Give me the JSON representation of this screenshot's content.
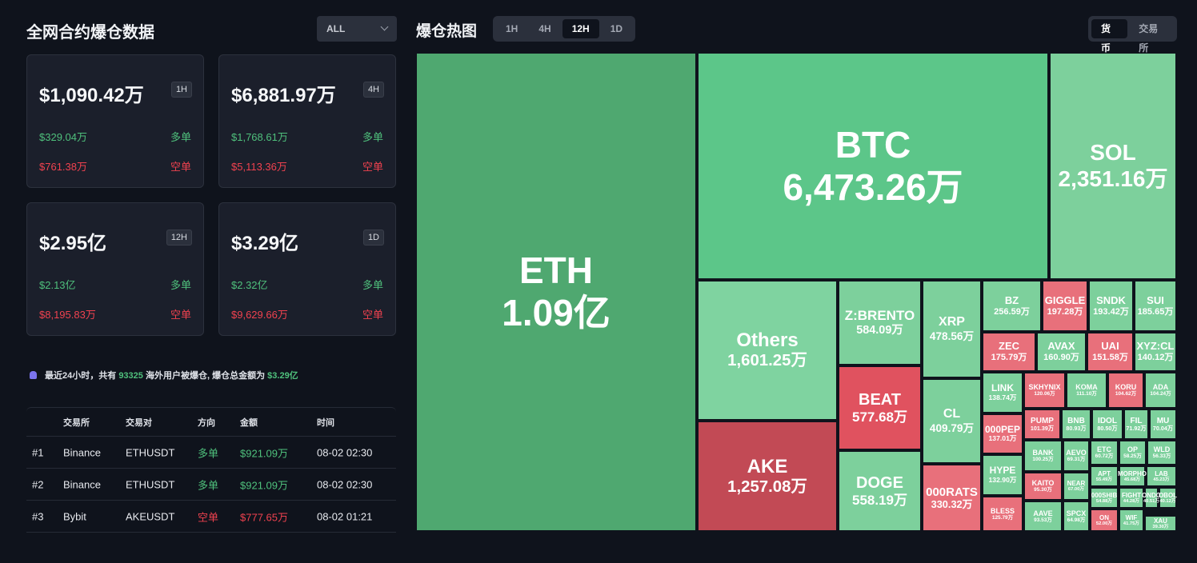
{
  "left": {
    "title": "全网合约爆仓数据",
    "filter": "ALL",
    "cards": [
      {
        "total": "$1,090.42万",
        "period": "1H",
        "long": "$329.04万",
        "long_label": "多单",
        "short": "$761.38万",
        "short_label": "空单"
      },
      {
        "total": "$6,881.97万",
        "period": "4H",
        "long": "$1,768.61万",
        "long_label": "多单",
        "short": "$5,113.36万",
        "short_label": "空单"
      },
      {
        "total": "$2.95亿",
        "period": "12H",
        "long": "$2.13亿",
        "long_label": "多单",
        "short": "$8,195.83万",
        "short_label": "空单"
      },
      {
        "total": "$3.29亿",
        "period": "1D",
        "long": "$2.32亿",
        "long_label": "多单",
        "short": "$9,629.66万",
        "short_label": "空单"
      }
    ],
    "notice": {
      "prefix": "最近24小时，共有",
      "count": "93325",
      "middle": "海外用户被爆仓, 爆仓总金额为",
      "amount": "$3.29亿"
    },
    "table": {
      "headers": [
        "交易所",
        "交易对",
        "方向",
        "金额",
        "时间"
      ],
      "rows": [
        [
          "#1",
          "Binance",
          "ETHUSDT",
          "多单",
          "$921.09万",
          "08-02 02:30"
        ],
        [
          "#2",
          "Binance",
          "ETHUSDT",
          "多单",
          "$921.09万",
          "08-02 02:30"
        ],
        [
          "#3",
          "Bybit",
          "AKEUSDT",
          "空单",
          "$777.65万",
          "08-02 01:21"
        ]
      ]
    }
  },
  "right": {
    "title": "爆仓热图",
    "tabs": [
      "1H",
      "4H",
      "12H",
      "1D"
    ],
    "active_tab": 2,
    "toggle": [
      "货币",
      "交易所"
    ],
    "active_toggle": 0,
    "tiles": [
      {
        "label": "ETH",
        "value": "1.09亿",
        "color": "#4fa870"
      },
      {
        "label": "BTC",
        "value": "6,473.26万",
        "color": "#5cc689"
      },
      {
        "label": "SOL",
        "value": "2,351.16万",
        "color": "#7dd09c"
      },
      {
        "label": "Others",
        "value": "1,601.25万",
        "color": "#7fd3a0"
      },
      {
        "label": "AKE",
        "value": "1,257.08万",
        "color": "#c24a55"
      },
      {
        "label": "Z:BRENTO",
        "value": "584.09万",
        "color": "#7dd09c"
      },
      {
        "label": "BEAT",
        "value": "577.68万",
        "color": "#e0525f"
      },
      {
        "label": "DOGE",
        "value": "558.19万",
        "color": "#7dd09c"
      },
      {
        "label": "XRP",
        "value": "478.56万",
        "color": "#7dd09c"
      },
      {
        "label": "CL",
        "value": "409.79万",
        "color": "#7dd09c"
      },
      {
        "label": "000RATS",
        "value": "330.32万",
        "color": "#e8707b"
      },
      {
        "label": "BZ",
        "value": "256.59万",
        "color": "#7dd09c"
      },
      {
        "label": "GIGGLE",
        "value": "197.28万",
        "color": "#e8707b"
      },
      {
        "label": "SNDK",
        "value": "193.42万",
        "color": "#7dd09c"
      },
      {
        "label": "SUI",
        "value": "185.65万",
        "color": "#7dd09c"
      },
      {
        "label": "ZEC",
        "value": "175.79万",
        "color": "#e8707b"
      },
      {
        "label": "AVAX",
        "value": "160.90万",
        "color": "#7dd09c"
      },
      {
        "label": "UAI",
        "value": "151.58万",
        "color": "#e8707b"
      },
      {
        "label": "XYZ:CL",
        "value": "140.12万",
        "color": "#7dd09c"
      },
      {
        "label": "LINK",
        "value": "138.74万",
        "color": "#7dd09c"
      },
      {
        "label": "SKHYNIX",
        "value": "120.06万",
        "color": "#e8707b"
      },
      {
        "label": "KOMA",
        "value": "111.10万",
        "color": "#7dd09c"
      },
      {
        "label": "KORU",
        "value": "104.62万",
        "color": "#e8707b"
      },
      {
        "label": "ADA",
        "value": "104.24万",
        "color": "#7dd09c"
      },
      {
        "label": "000PEP",
        "value": "137.01万",
        "color": "#e8707b"
      },
      {
        "label": "PUMP",
        "value": "101.39万",
        "color": "#e8707b"
      },
      {
        "label": "BNB",
        "value": "80.93万",
        "color": "#7dd09c"
      },
      {
        "label": "IDOL",
        "value": "80.50万",
        "color": "#7dd09c"
      },
      {
        "label": "FIL",
        "value": "71.92万",
        "color": "#7dd09c"
      },
      {
        "label": "MU",
        "value": "70.04万",
        "color": "#7dd09c"
      },
      {
        "label": "HYPE",
        "value": "132.90万",
        "color": "#7dd09c"
      },
      {
        "label": "BANK",
        "value": "100.25万",
        "color": "#7dd09c"
      },
      {
        "label": "AEVO",
        "value": "69.31万",
        "color": "#7dd09c"
      },
      {
        "label": "ETC",
        "value": "60.72万",
        "color": "#7dd09c"
      },
      {
        "label": "OP",
        "value": "58.25万",
        "color": "#7dd09c"
      },
      {
        "label": "WLD",
        "value": "56.33万",
        "color": "#7dd09c"
      },
      {
        "label": "APT",
        "value": "55.49万",
        "color": "#7dd09c"
      },
      {
        "label": "MORPHO",
        "value": "45.68万",
        "color": "#7dd09c"
      },
      {
        "label": "LAB",
        "value": "45.23万",
        "color": "#7dd09c"
      },
      {
        "label": "KAITO",
        "value": "95.30万",
        "color": "#e8707b"
      },
      {
        "label": "NEAR",
        "value": "67.00万",
        "color": "#7dd09c"
      },
      {
        "label": "000SHIB",
        "value": "54.88万",
        "color": "#7dd09c"
      },
      {
        "label": "FIGHT",
        "value": "44.28万",
        "color": "#7dd09c"
      },
      {
        "label": "ONDO",
        "value": "40.51万",
        "color": "#7dd09c"
      },
      {
        "label": "OBOL",
        "value": "40.12万",
        "color": "#7dd09c"
      },
      {
        "label": "BLESS",
        "value": "125.79万",
        "color": "#e8707b"
      },
      {
        "label": "AAVE",
        "value": "93.53万",
        "color": "#7dd09c"
      },
      {
        "label": "SPCX",
        "value": "64.98万",
        "color": "#7dd09c"
      },
      {
        "label": "ON",
        "value": "52.00万",
        "color": "#e8707b"
      },
      {
        "label": "WIF",
        "value": "41.75万",
        "color": "#7dd09c"
      },
      {
        "label": "XAU",
        "value": "39.30万",
        "color": "#7dd09c"
      }
    ]
  }
}
